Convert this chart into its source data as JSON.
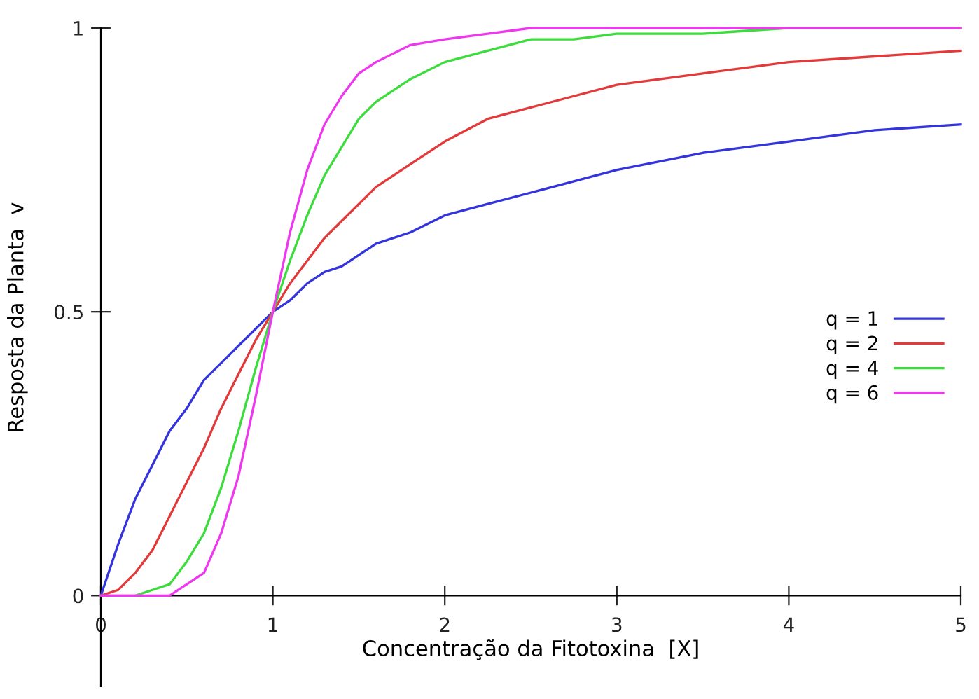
{
  "chart_data": {
    "type": "line",
    "xlabel": "Concentração da Fitotoxina  [X]",
    "ylabel": "Resposta da Planta  v",
    "x": [
      0,
      0.1,
      0.2,
      0.3,
      0.4,
      0.5,
      0.6,
      0.7,
      0.8,
      0.9,
      1,
      1.1,
      1.2,
      1.3,
      1.4,
      1.5,
      1.6,
      1.8,
      2,
      2.25,
      2.5,
      2.75,
      3,
      3.5,
      4,
      4.5,
      5
    ],
    "series": [
      {
        "name": "q = 1",
        "color": "#3434dc",
        "values": [
          0,
          0.09,
          0.17,
          0.23,
          0.29,
          0.33,
          0.38,
          0.41,
          0.44,
          0.47,
          0.5,
          0.52,
          0.55,
          0.57,
          0.58,
          0.6,
          0.62,
          0.64,
          0.67,
          0.69,
          0.71,
          0.73,
          0.75,
          0.78,
          0.8,
          0.82,
          0.83
        ]
      },
      {
        "name": "q = 2",
        "color": "#e23a3a",
        "values": [
          0,
          0.01,
          0.04,
          0.08,
          0.14,
          0.2,
          0.26,
          0.33,
          0.39,
          0.45,
          0.5,
          0.55,
          0.59,
          0.63,
          0.66,
          0.69,
          0.72,
          0.76,
          0.8,
          0.84,
          0.86,
          0.88,
          0.9,
          0.92,
          0.94,
          0.95,
          0.96
        ]
      },
      {
        "name": "q = 4",
        "color": "#3cdc3c",
        "values": [
          0,
          0,
          0,
          0.01,
          0.02,
          0.06,
          0.11,
          0.19,
          0.29,
          0.4,
          0.5,
          0.59,
          0.67,
          0.74,
          0.79,
          0.84,
          0.87,
          0.91,
          0.94,
          0.96,
          0.98,
          0.98,
          0.99,
          0.99,
          1,
          1,
          1
        ]
      },
      {
        "name": "q = 6",
        "color": "#ee38ee",
        "values": [
          0,
          0,
          0,
          0,
          0,
          0.02,
          0.04,
          0.11,
          0.21,
          0.35,
          0.5,
          0.64,
          0.75,
          0.83,
          0.88,
          0.92,
          0.94,
          0.97,
          0.98,
          0.99,
          1,
          1,
          1,
          1,
          1,
          1,
          1
        ]
      }
    ],
    "xlim": [
      0,
      5
    ],
    "xticks": [
      0,
      1,
      2,
      3,
      4,
      5
    ],
    "ylim": [
      -0.16,
      1
    ],
    "yticks": [
      0,
      0.5,
      1
    ],
    "grid": false,
    "legend": "right",
    "marker": "none",
    "line_style": "solid"
  }
}
